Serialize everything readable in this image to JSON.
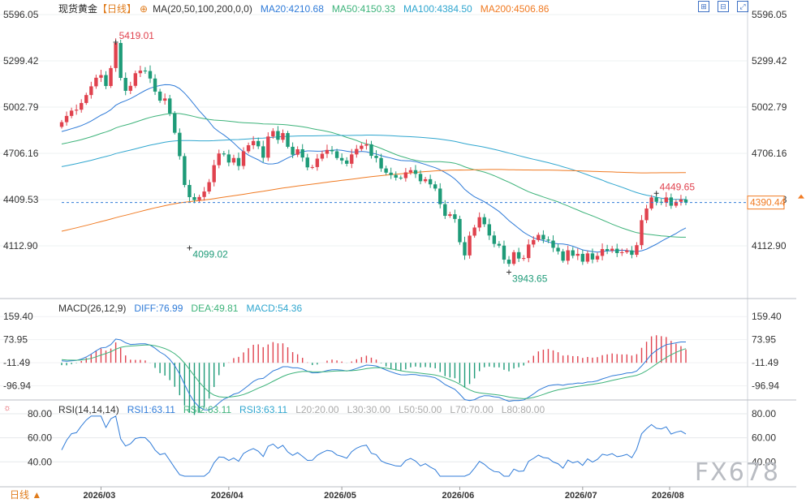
{
  "header": {
    "symbol": "现货黄金",
    "period": "【日线】",
    "ma_label": "MA(20,50,100,200,0,0)",
    "ma20": "MA20:4210.68",
    "ma50": "MA50:4150.33",
    "ma100": "MA100:4384.50",
    "ma200": "MA200:4506.86"
  },
  "macd_header": {
    "label": "MACD(26,12,9)",
    "diff": "DIFF:76.99",
    "dea": "DEA:49.81",
    "macd": "MACD:54.36"
  },
  "rsi_header": {
    "label": "RSI(14,14,14)",
    "rsi1": "RSI1:63.11",
    "rsi2": "RSI2:63.11",
    "rsi3": "RSI3:63.11",
    "l20": "L20:20.00",
    "l30": "L30:30.00",
    "l50": "L50:50.00",
    "l70": "L70:70.00",
    "l80": "L80:80.00"
  },
  "footer": {
    "period_button": "日线 ▲",
    "watermark": "FX678"
  },
  "colors": {
    "up": "#e0424e",
    "down": "#1e9b78",
    "ma20": "#2f7bd8",
    "ma50": "#3db37a",
    "ma100": "#2fa6cf",
    "ma200": "#f07a22",
    "diff": "#2f7bd8",
    "dea": "#3db37a",
    "rsi": "#2f7bd8",
    "last_price_tag": "#f07a22"
  },
  "chart_data": [
    {
      "type": "candlestick",
      "title": "现货黄金【日线】",
      "y_ticks": [
        "5596.05",
        "5299.42",
        "5002.79",
        "4706.16",
        "4409.53",
        "4112.90"
      ],
      "x_ticks": [
        "2026/03",
        "2026/04",
        "2026/05",
        "2026/06",
        "2026/07",
        "2026/08"
      ],
      "annotations": [
        {
          "text": "5419.01",
          "type": "high"
        },
        {
          "text": "4099.02",
          "type": "low"
        },
        {
          "text": "3943.65",
          "type": "low"
        },
        {
          "text": "4449.65",
          "type": "high"
        }
      ],
      "last_price": "4390.44",
      "close": [
        4906,
        4946,
        4980,
        4986,
        5029,
        5080,
        5136,
        5191,
        5208,
        5138,
        5253,
        5414,
        5190,
        5107,
        5139,
        5220,
        5237,
        5234,
        5186,
        5102,
        5044,
        5058,
        4963,
        4838,
        4688,
        4503,
        4425,
        4406,
        4426,
        4461,
        4521,
        4630,
        4705,
        4699,
        4647,
        4676,
        4625,
        4719,
        4758,
        4785,
        4751,
        4678,
        4814,
        4849,
        4793,
        4836,
        4748,
        4697,
        4732,
        4679,
        4616,
        4618,
        4672,
        4703,
        4728,
        4719,
        4676,
        4660,
        4639,
        4699,
        4734,
        4755,
        4764,
        4690,
        4676,
        4609,
        4582,
        4567,
        4550,
        4547,
        4584,
        4598,
        4574,
        4527,
        4540,
        4507,
        4480,
        4380,
        4305,
        4315,
        4285,
        4136,
        4051,
        4178,
        4230,
        4296,
        4251,
        4179,
        4125,
        4114,
        4024,
        3997,
        4072,
        4031,
        4034,
        4121,
        4150,
        4183,
        4153,
        4146,
        4100,
        4077,
        4017,
        4084,
        4049,
        4061,
        4011,
        4064,
        4025,
        4048,
        4092,
        4081,
        4094,
        4066,
        4072,
        4083,
        4055,
        4117,
        4277,
        4352,
        4423,
        4395,
        4390,
        4423,
        4370,
        4395,
        4410,
        4390
      ]
    },
    {
      "type": "line",
      "title": "MACD(26,12,9)",
      "y_ticks": [
        "159.40",
        "73.95",
        "-11.49",
        "-96.94"
      ],
      "series_names": [
        "DIFF",
        "DEA",
        "MACD"
      ],
      "last": {
        "DIFF": 76.99,
        "DEA": 49.81,
        "MACD": 54.36
      }
    },
    {
      "type": "line",
      "title": "RSI(14,14,14)",
      "y_ticks": [
        "80.00",
        "60.00",
        "40.00"
      ],
      "last": {
        "RSI1": 63.11,
        "RSI2": 63.11,
        "RSI3": 63.11
      }
    }
  ]
}
